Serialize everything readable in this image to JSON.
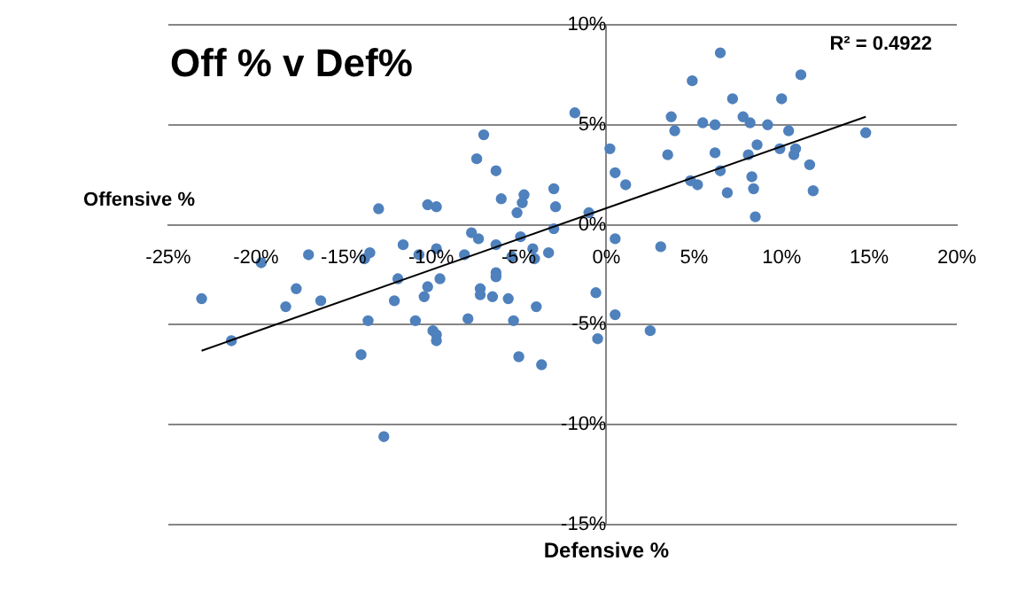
{
  "chart_data": {
    "type": "scatter",
    "title": "Off % v Def%",
    "xlabel": "Defensive %",
    "ylabel": "Offensive %",
    "annotations": [
      "R² = 0.4922"
    ],
    "xlim": [
      -25,
      20
    ],
    "ylim": [
      -15,
      10
    ],
    "xticks": [
      {
        "value": -25,
        "label": "-25%"
      },
      {
        "value": -20,
        "label": "-20%"
      },
      {
        "value": -15,
        "label": "-15%"
      },
      {
        "value": -10,
        "label": "-10%"
      },
      {
        "value": -5,
        "label": "-5%"
      },
      {
        "value": 0,
        "label": "0%"
      },
      {
        "value": 5,
        "label": "5%"
      },
      {
        "value": 10,
        "label": "10%"
      },
      {
        "value": 15,
        "label": "15%"
      },
      {
        "value": 20,
        "label": "20%"
      }
    ],
    "yticks": [
      {
        "value": -15,
        "label": "-15%"
      },
      {
        "value": -10,
        "label": "-10%"
      },
      {
        "value": -5,
        "label": "-5%"
      },
      {
        "value": 0,
        "label": "0%"
      },
      {
        "value": 5,
        "label": "5%"
      },
      {
        "value": 10,
        "label": "10%"
      }
    ],
    "grid": "y",
    "legend": false,
    "marker": "circle",
    "series": [
      {
        "color": "#4f81bd",
        "x": [
          0.2,
          0.5,
          1.1,
          3.7,
          3.9,
          3.5,
          4.9,
          5.5,
          4.8,
          5.2,
          6.2,
          6.2,
          6.5,
          6.5,
          6.9,
          7.2,
          7.8,
          8.2,
          8.1,
          8.3,
          8.4,
          8.5,
          8.6,
          9.2,
          9.9,
          10.0,
          10.4,
          10.7,
          10.8,
          11.1,
          11.6,
          11.8,
          14.8,
          0.5,
          3.1,
          0.5,
          2.5,
          -0.5,
          -1.8,
          -7.0,
          -7.4,
          -6.3,
          -6.0,
          -4.7,
          -4.8,
          -5.1,
          -3.0,
          -2.9,
          -3.0,
          -1.0,
          -7.7,
          -7.3,
          -6.3,
          -4.9,
          -4.2,
          -5.4,
          -4.1,
          -3.3,
          -8.1,
          -9.7,
          -6.3,
          -6.3,
          -7.2,
          -7.2,
          -6.5,
          -5.6,
          -9.5,
          -10.2,
          -10.4,
          -7.9,
          -4.0,
          -5.3,
          -0.6,
          -5.0,
          -3.7,
          -9.9,
          -9.7,
          -9.7,
          -10.2,
          -9.7,
          -23.1,
          -21.4,
          -19.7,
          -17.7,
          -18.3,
          -17.0,
          -16.3,
          -13.5,
          -13.8,
          -13.6,
          -14.0,
          -12.7,
          -13.0,
          -11.6,
          -11.9,
          -12.1,
          -10.9,
          -10.7
        ],
        "values": [
          3.8,
          2.6,
          2.0,
          5.4,
          4.7,
          3.5,
          7.2,
          5.1,
          2.2,
          2.0,
          5.0,
          3.6,
          8.6,
          2.7,
          1.6,
          6.3,
          5.4,
          5.1,
          3.5,
          2.4,
          1.8,
          0.4,
          4.0,
          5.0,
          3.8,
          6.3,
          4.7,
          3.5,
          3.8,
          7.5,
          3.0,
          1.7,
          4.6,
          -0.7,
          -1.1,
          -4.5,
          -5.3,
          -5.7,
          5.6,
          4.5,
          3.3,
          2.7,
          1.3,
          1.5,
          1.1,
          0.6,
          1.8,
          0.9,
          -0.2,
          0.6,
          -0.4,
          -0.7,
          -1.0,
          -0.6,
          -1.2,
          -1.6,
          -1.7,
          -1.4,
          -1.5,
          -1.2,
          -2.4,
          -2.6,
          -3.2,
          -3.5,
          -3.6,
          -3.7,
          -2.7,
          -3.1,
          -3.6,
          -4.7,
          -4.1,
          -4.8,
          -3.4,
          -6.6,
          -7.0,
          -5.3,
          -5.5,
          -5.8,
          1.0,
          0.9,
          -3.7,
          -5.8,
          -1.9,
          -3.2,
          -4.1,
          -1.5,
          -3.8,
          -1.4,
          -1.7,
          -4.8,
          -6.5,
          -10.6,
          0.8,
          -1.0,
          -2.7,
          -3.8,
          -4.8,
          -1.5
        ]
      },
      {
        "color": "#000000",
        "type": "line",
        "marker": "none",
        "x": [
          -23.1,
          14.8
        ],
        "values": [
          -6.3,
          5.4
        ]
      }
    ]
  }
}
